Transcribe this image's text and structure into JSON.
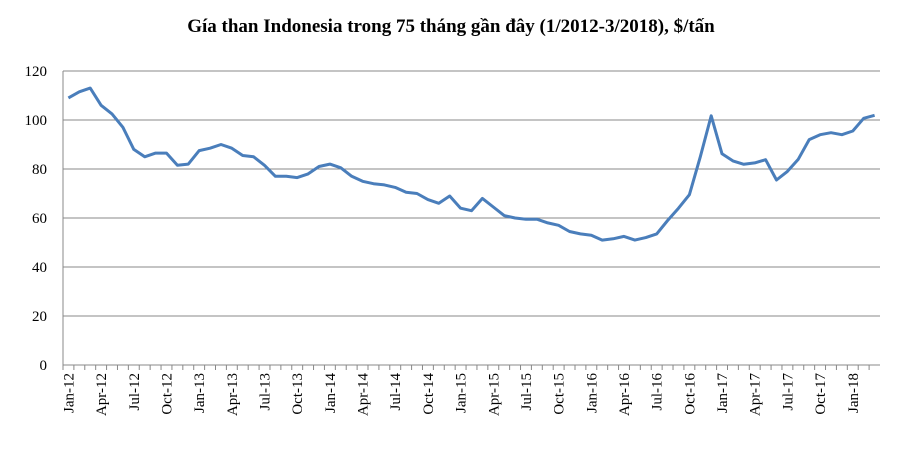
{
  "chart_data": {
    "type": "line",
    "title": "Gía than Indonesia trong 75 tháng gần đây (1/2012-3/2018), $/tấn",
    "categories": [
      "Jan-12",
      null,
      null,
      "Apr-12",
      null,
      null,
      "Jul-12",
      null,
      null,
      "Oct-12",
      null,
      null,
      "Jan-13",
      null,
      null,
      "Apr-13",
      null,
      null,
      "Jul-13",
      null,
      null,
      "Oct-13",
      null,
      null,
      "Jan-14",
      null,
      null,
      "Apr-14",
      null,
      null,
      "Jul-14",
      null,
      null,
      "Oct-14",
      null,
      null,
      "Jan-15",
      null,
      null,
      "Apr-15",
      null,
      null,
      "Jul-15",
      null,
      null,
      "Oct-15",
      null,
      null,
      "Jan-16",
      null,
      null,
      "Apr-16",
      null,
      null,
      "Jul-16",
      null,
      null,
      "Oct-16",
      null,
      null,
      "Jan-17",
      null,
      null,
      "Apr-17",
      null,
      null,
      "Jul-17",
      null,
      null,
      "Oct-17",
      null,
      null,
      "Jan-18",
      null,
      null
    ],
    "values": [
      109,
      111.5,
      113,
      106,
      102.5,
      97,
      88,
      85,
      86.5,
      86.5,
      81.5,
      82,
      87.5,
      88.5,
      90,
      88.5,
      85.5,
      85,
      81.5,
      77,
      77,
      76.5,
      78,
      81,
      82,
      80.5,
      77,
      75,
      74,
      73.5,
      72.5,
      70.5,
      70,
      67.5,
      66,
      69,
      64,
      63,
      68,
      64.5,
      61,
      60,
      59.5,
      59.5,
      58,
      57,
      54.5,
      53.5,
      53,
      51,
      51.5,
      52.5,
      51,
      52,
      53.5,
      59,
      64,
      69.5,
      85,
      101.7,
      86.2,
      83.3,
      81.9,
      82.5,
      83.8,
      75.5,
      79,
      84,
      92,
      94,
      94.8,
      94,
      95.5,
      100.7,
      101.9
    ],
    "color": "#4a7ebb",
    "ylim": [
      0,
      120
    ],
    "yticks": [
      0,
      20,
      40,
      60,
      80,
      100,
      120
    ],
    "grid": true
  }
}
